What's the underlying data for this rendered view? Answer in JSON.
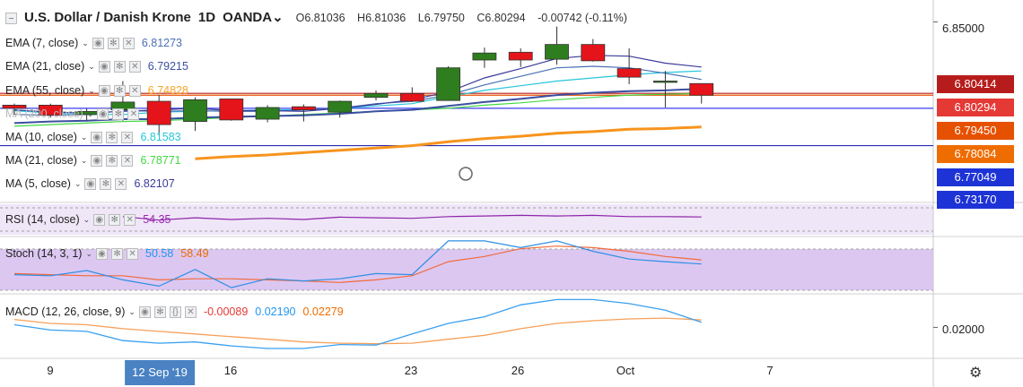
{
  "header": {
    "symbol": "U.S. Dollar / Danish Krone",
    "interval": "1D",
    "source": "OANDA",
    "open": "O6.81036",
    "high": "H6.81036",
    "low": "L6.79750",
    "close": "C6.80294",
    "change": "-0.00742 (-0.11%)"
  },
  "legend": [
    {
      "name": "EMA (7, close)",
      "value": "6.81273",
      "color": "#4a6fb5"
    },
    {
      "name": "EMA (21, close)",
      "value": "6.79215",
      "color": "#3a4fa0"
    },
    {
      "name": "EMA (55, close)",
      "value": "6.74828",
      "color": "#f5a623"
    },
    {
      "name": "MA (200, close)",
      "value": "",
      "color": "#9e9e9e"
    },
    {
      "name": "MA (10, close)",
      "value": "6.81583",
      "color": "#26c6da"
    },
    {
      "name": "MA (21, close)",
      "value": "6.78771",
      "color": "#43d843"
    },
    {
      "name": "MA (5, close)",
      "value": "6.82107",
      "color": "#3a3a9a"
    }
  ],
  "price_axis": {
    "labels": [
      "6.85000"
    ],
    "badges": [
      {
        "value": "6.80414",
        "color": "#b71c1c"
      },
      {
        "value": "6.80294",
        "color": "#e53935"
      },
      {
        "value": "6.79450",
        "color": "#e65100"
      },
      {
        "value": "6.78084",
        "color": "#ef6c00"
      },
      {
        "value": "6.77049",
        "color": "#1e33d6"
      },
      {
        "value": "6.73170",
        "color": "#1e33d6"
      }
    ]
  },
  "rsi": {
    "name": "RSI (14, close)",
    "value": "54.35"
  },
  "stoch": {
    "name": "Stoch (14, 3, 1)",
    "k": "50.58",
    "d": "58.49"
  },
  "macd": {
    "name": "MACD (12, 26, close, 9)",
    "hist": "-0.00089",
    "macd": "0.02190",
    "signal": "0.02279",
    "axis_label": "0.02000"
  },
  "x_axis": {
    "labels": [
      "9",
      "12 Sep '19",
      "16",
      "23",
      "26",
      "Oct",
      "7"
    ],
    "highlight": "12 Sep '19"
  },
  "chart_data": {
    "type": "candlestick",
    "candles": [
      {
        "o": 6.7965,
        "h": 6.7975,
        "l": 6.7905,
        "c": 6.7945
      },
      {
        "o": 6.7965,
        "h": 6.7975,
        "l": 6.7885,
        "c": 6.79
      },
      {
        "o": 6.7905,
        "h": 6.7945,
        "l": 6.7865,
        "c": 6.7925
      },
      {
        "o": 6.7935,
        "h": 6.812,
        "l": 6.7865,
        "c": 6.7985
      },
      {
        "o": 6.799,
        "h": 6.803,
        "l": 6.777,
        "c": 6.784
      },
      {
        "o": 6.786,
        "h": 6.8015,
        "l": 6.78,
        "c": 6.8
      },
      {
        "o": 6.8005,
        "h": 6.8005,
        "l": 6.7865,
        "c": 6.787
      },
      {
        "o": 6.7875,
        "h": 6.7965,
        "l": 6.7855,
        "c": 6.795
      },
      {
        "o": 6.7955,
        "h": 6.797,
        "l": 6.786,
        "c": 6.7935
      },
      {
        "o": 6.792,
        "h": 6.7995,
        "l": 6.7885,
        "c": 6.799
      },
      {
        "o": 6.8015,
        "h": 6.806,
        "l": 6.7995,
        "c": 6.804
      },
      {
        "o": 6.804,
        "h": 6.808,
        "l": 6.7985,
        "c": 6.799
      },
      {
        "o": 6.7995,
        "h": 6.8215,
        "l": 6.7995,
        "c": 6.8205
      },
      {
        "o": 6.8255,
        "h": 6.8335,
        "l": 6.8205,
        "c": 6.83
      },
      {
        "o": 6.8305,
        "h": 6.833,
        "l": 6.821,
        "c": 6.8255
      },
      {
        "o": 6.826,
        "h": 6.847,
        "l": 6.8225,
        "c": 6.8355
      },
      {
        "o": 6.8355,
        "h": 6.839,
        "l": 6.8245,
        "c": 6.825
      },
      {
        "o": 6.82,
        "h": 6.833,
        "l": 6.81,
        "c": 6.8145
      },
      {
        "o": 6.8115,
        "h": 6.8185,
        "l": 6.795,
        "c": 6.812
      },
      {
        "o": 6.8104,
        "h": 6.8104,
        "l": 6.7975,
        "c": 6.8029
      }
    ],
    "ema7": [
      6.7905,
      6.79,
      6.7905,
      6.793,
      6.7925,
      6.793,
      6.7925,
      6.7925,
      6.7935,
      6.7945,
      6.7975,
      6.799,
      6.803,
      6.8095,
      6.815,
      6.8205,
      6.8215,
      6.8205,
      6.817,
      6.813
    ],
    "ema21": [
      6.785,
      6.786,
      6.7865,
      6.7875,
      6.7875,
      6.7885,
      6.789,
      6.7895,
      6.79,
      6.791,
      6.7925,
      6.7935,
      6.796,
      6.7985,
      6.8005,
      6.803,
      6.8045,
      6.8055,
      6.806,
      6.807
    ],
    "ema55": [
      6.755,
      6.7565,
      6.758,
      6.7595,
      6.7605,
      6.762,
      6.7635,
      6.7645,
      6.766,
      6.7675,
      6.769,
      6.7705,
      6.773,
      6.775,
      6.7765,
      6.7785,
      6.7795,
      6.781,
      6.7815,
      6.7825
    ],
    "ma10": [
      6.793,
      6.7915,
      6.7905,
      6.7905,
      6.792,
      6.7925,
      6.793,
      6.7935,
      6.7935,
      6.7945,
      6.796,
      6.7975,
      6.802,
      6.806,
      6.809,
      6.812,
      6.814,
      6.816,
      6.8175,
      6.8185
    ],
    "ma21": [
      6.783,
      6.784,
      6.785,
      6.786,
      6.7865,
      6.7875,
      6.7885,
      6.7895,
      6.7905,
      6.7915,
      6.7925,
      6.7935,
      6.7945,
      6.7965,
      6.798,
      6.8,
      6.8015,
      6.803,
      6.8035,
      6.804
    ],
    "ma5": [
      6.7935,
      6.792,
      6.7915,
      6.7925,
      6.7935,
      6.7945,
      6.793,
      6.793,
      6.7925,
      6.7945,
      6.797,
      6.8,
      6.805,
      6.814,
      6.82,
      6.8265,
      6.8285,
      6.828,
      6.8235,
      6.821
    ],
    "hlines": [
      6.8041,
      6.8029,
      6.7945,
      6.7705
    ],
    "price_range": [
      6.7317,
      6.856
    ],
    "rsi": [
      52,
      53,
      51,
      55,
      49,
      53,
      50,
      52,
      50,
      54,
      53,
      52,
      55,
      56,
      57,
      56,
      57,
      55,
      55,
      54.35
    ],
    "stoch_k": [
      30,
      28,
      38,
      20,
      8,
      40,
      5,
      22,
      18,
      22,
      32,
      30,
      95,
      95,
      82,
      95,
      75,
      60,
      55,
      50.58
    ],
    "stoch_d": [
      32,
      30,
      28,
      28,
      20,
      22,
      22,
      20,
      18,
      15,
      20,
      28,
      55,
      65,
      80,
      85,
      82,
      75,
      65,
      58.49
    ],
    "macd": [
      0.021,
      0.019,
      0.0185,
      0.015,
      0.014,
      0.0145,
      0.013,
      0.012,
      0.012,
      0.0135,
      0.0133,
      0.0175,
      0.0215,
      0.024,
      0.0285,
      0.0305,
      0.0305,
      0.029,
      0.0265,
      0.0219
    ],
    "macd_signal": [
      0.023,
      0.0215,
      0.021,
      0.0195,
      0.0185,
      0.0175,
      0.0165,
      0.0155,
      0.0145,
      0.014,
      0.0138,
      0.014,
      0.0155,
      0.017,
      0.0195,
      0.0215,
      0.0225,
      0.0232,
      0.0235,
      0.0228
    ]
  }
}
